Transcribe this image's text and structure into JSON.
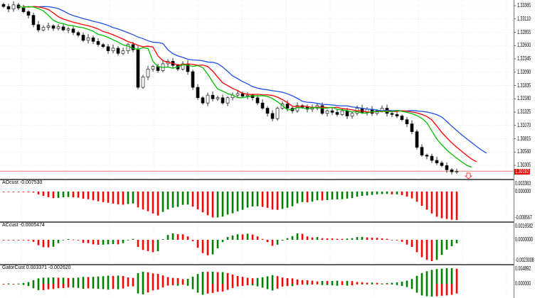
{
  "colors": {
    "bull": "#ffffff",
    "bear": "#000000",
    "green": "#00c000",
    "red": "#ff0000",
    "blue": "#1e50e6",
    "grid": "#d8d8d8",
    "ind_up": "#008000",
    "ind_down": "#ff0000"
  },
  "price_axis": {
    "labels": [
      "1.33365",
      "1.33110",
      "1.32855",
      "1.32600",
      "1.32345",
      "1.32090",
      "1.31835",
      "1.31580",
      "1.31325",
      "1.31070",
      "1.30815",
      "1.30560",
      "1.30305"
    ],
    "current": "1.30192",
    "current_value": 1.30192
  },
  "panes": [
    {
      "label": "AOcust -0.007530",
      "axis": [
        "0.003383",
        "0.000000",
        "-0.008567"
      ]
    },
    {
      "label": "ACcust -0.0005474",
      "axis": [
        "0.0016582",
        "0.0000000",
        "-0.0023008"
      ]
    },
    {
      "label": "GatorCust 0.003371 -0.002620",
      "axis": [
        "0.004892",
        "0.000000"
      ]
    }
  ],
  "chart_data": {
    "type": "candlestick",
    "closes": [
      1.3335,
      1.333,
      1.3338,
      1.3332,
      1.3325,
      1.3318,
      1.33,
      1.329,
      1.3295,
      1.3298,
      1.3293,
      1.3296,
      1.329,
      1.3292,
      1.3285,
      1.328,
      1.327,
      1.3275,
      1.3268,
      1.3262,
      1.3258,
      1.325,
      1.3255,
      1.3245,
      1.325,
      1.3262,
      1.3252,
      1.318,
      1.32,
      1.3215,
      1.322,
      1.3212,
      1.3225,
      1.323,
      1.3222,
      1.3215,
      1.3225,
      1.321,
      1.318,
      1.316,
      1.315,
      1.3165,
      1.3158,
      1.316,
      1.315,
      1.316,
      1.3165,
      1.3168,
      1.3163,
      1.3165,
      1.316,
      1.315,
      1.314,
      1.313,
      1.312,
      1.314,
      1.3148,
      1.314,
      1.3135,
      1.3145,
      1.3142,
      1.3138,
      1.314,
      1.3145,
      1.313,
      1.3135,
      1.3132,
      1.3128,
      1.3135,
      1.3125,
      1.313,
      1.314,
      1.3132,
      1.3138,
      1.313,
      1.3135,
      1.314,
      1.313,
      1.3128,
      1.3125,
      1.3118,
      1.311,
      1.3095,
      1.3065,
      1.305,
      1.3048,
      1.304,
      1.3035,
      1.303,
      1.3022,
      1.3018,
      1.3019
    ],
    "ylim": [
      1.3019,
      1.3345
    ]
  }
}
